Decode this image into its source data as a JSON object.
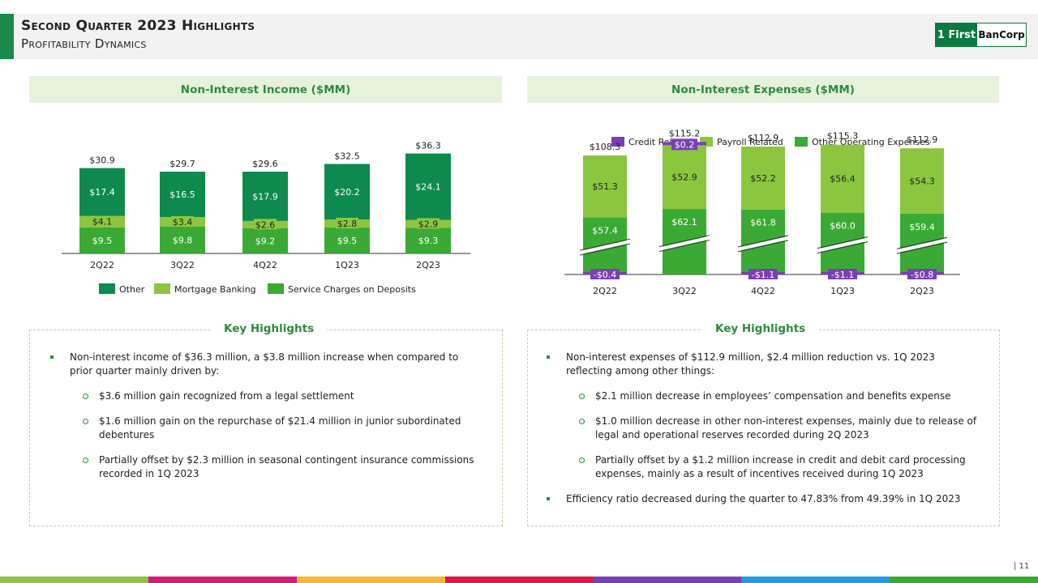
{
  "header": {
    "title": "Second Quarter 2023 Highlights",
    "subtitle": "Profitability Dynamics",
    "logo_left": "1 First",
    "logo_right": "BanCorp"
  },
  "colors": {
    "accent": "#1a8a4a",
    "other": "#0e8a4e",
    "mortgage": "#8cc63f",
    "service": "#3aaa35",
    "credit": "#7b3fb5",
    "payroll": "#8cc63f",
    "other_opex": "#3aaa35",
    "footer": [
      "#8cc63f",
      "#d81b7a",
      "#f7b731",
      "#d91a4a",
      "#7a3fb5",
      "#1e9be0",
      "#3aaa35"
    ]
  },
  "left": {
    "heading": "Non-Interest Income ($MM)",
    "key_title": "Key Highlights",
    "bullets": {
      "main": "Non-interest income of $36.3 million, a $3.8 million increase when compared to prior quarter mainly driven by:",
      "sub": [
        "$3.6 million gain recognized from a legal settlement",
        "$1.6 million gain on the repurchase of $21.4 million in junior subordinated debentures",
        "Partially offset by $2.3 million in seasonal contingent insurance commissions recorded in 1Q 2023"
      ]
    }
  },
  "right": {
    "heading": "Non-Interest Expenses ($MM)",
    "key_title": "Key Highlights",
    "bullets": {
      "main": "Non-interest expenses of $112.9 million, $2.4 million reduction vs. 1Q 2023 reflecting among other things:",
      "sub": [
        "$2.1 million decrease in employees’ compensation and benefits expense",
        "$1.0 million decrease in other non-interest expenses, mainly due to release of legal and operational reserves recorded during 2Q 2023",
        "Partially offset by a $1.2 million increase in credit and debit card processing expenses, mainly as a result of incentives received during 1Q 2023"
      ],
      "last": "Efficiency ratio decreased during the quarter to 47.83% from 49.39% in 1Q 2023"
    }
  },
  "page_number": "| 11",
  "chart_data": [
    {
      "type": "bar",
      "stacked": true,
      "title": "Non-Interest Income ($MM)",
      "categories": [
        "2Q22",
        "3Q22",
        "4Q22",
        "1Q23",
        "2Q23"
      ],
      "series": [
        {
          "name": "Service Charges on Deposits",
          "values": [
            9.5,
            9.8,
            9.2,
            9.5,
            9.3
          ],
          "labels": [
            "$9.5",
            "$9.8",
            "$9.2",
            "$9.5",
            "$9.3"
          ]
        },
        {
          "name": "Mortgage Banking",
          "values": [
            4.1,
            3.4,
            2.6,
            2.8,
            2.9
          ],
          "labels": [
            "$4.1",
            "$3.4",
            "$2.6",
            "$2.8",
            "$2.9"
          ]
        },
        {
          "name": "Other",
          "values": [
            17.4,
            16.5,
            17.9,
            20.2,
            24.1
          ],
          "labels": [
            "$17.4",
            "$16.5",
            "$17.9",
            "$20.2",
            "$24.1"
          ]
        }
      ],
      "totals": [
        "$30.9",
        "$29.7",
        "$29.6",
        "$32.5",
        "$36.3"
      ],
      "legend": [
        "Other",
        "Mortgage Banking",
        "Service Charges on Deposits"
      ],
      "legend_position": "bottom"
    },
    {
      "type": "bar",
      "stacked": true,
      "broken_axis": true,
      "title": "Non-Interest Expenses ($MM)",
      "categories": [
        "2Q22",
        "3Q22",
        "4Q22",
        "1Q23",
        "2Q23"
      ],
      "series": [
        {
          "name": "Credit Related",
          "values": [
            -0.4,
            0.2,
            -1.1,
            -1.1,
            -0.8
          ],
          "labels": [
            "-$0.4",
            "$0.2",
            "-$1.1",
            "-$1.1",
            "-$0.8"
          ]
        },
        {
          "name": "Other Operating Expenses",
          "values": [
            57.4,
            62.1,
            61.8,
            60.0,
            59.4
          ],
          "labels": [
            "$57.4",
            "$62.1",
            "$61.8",
            "$60.0",
            "$59.4"
          ]
        },
        {
          "name": "Payroll Related",
          "values": [
            51.3,
            52.9,
            52.2,
            56.4,
            54.3
          ],
          "labels": [
            "$51.3",
            "$52.9",
            "$52.2",
            "$56.4",
            "$54.3"
          ]
        }
      ],
      "totals": [
        "$108.3",
        "$115.2",
        "$112.9",
        "$115.3",
        "$112.9"
      ],
      "legend": [
        "Credit Related",
        "Payroll Related",
        "Other Operating Expenses"
      ],
      "legend_position": "top"
    }
  ]
}
